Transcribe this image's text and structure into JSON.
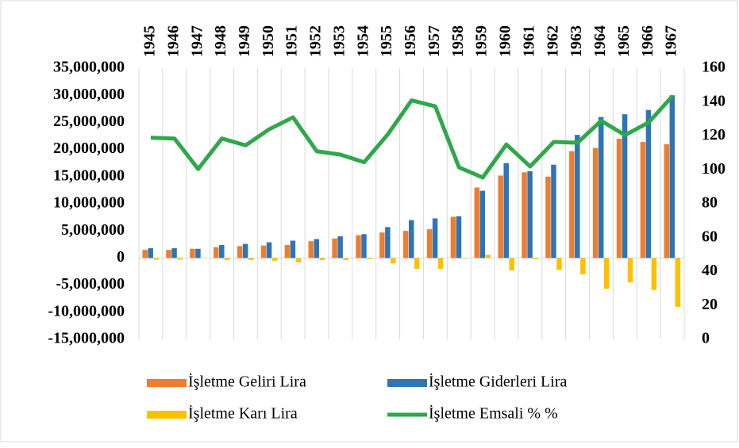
{
  "chart_data": {
    "type": "bar",
    "categories": [
      "1945",
      "1946",
      "1947",
      "1948",
      "1949",
      "1950",
      "1951",
      "1952",
      "1953",
      "1954",
      "1955",
      "1956",
      "1957",
      "1958",
      "1959",
      "1960",
      "1961",
      "1962",
      "1963",
      "1964",
      "1965",
      "1966",
      "1967"
    ],
    "series": [
      {
        "name": "İşletme Geliri Lira",
        "color": "#ED7D31",
        "type": "bar",
        "values": [
          1500000,
          1500000,
          1700000,
          2000000,
          2200000,
          2300000,
          2400000,
          3100000,
          3600000,
          4200000,
          4700000,
          5000000,
          5300000,
          7600000,
          13000000,
          15200000,
          15800000,
          15000000,
          19700000,
          20300000,
          22000000,
          21400000,
          21000000
        ]
      },
      {
        "name": "İşletme Giderleri Lira",
        "color": "#2E75B6",
        "type": "bar",
        "values": [
          1800000,
          1800000,
          1700000,
          2400000,
          2600000,
          2900000,
          3200000,
          3500000,
          4000000,
          4400000,
          5700000,
          7000000,
          7300000,
          7700000,
          12400000,
          17500000,
          16000000,
          17200000,
          22700000,
          26000000,
          26500000,
          27300000,
          30000000
        ]
      },
      {
        "name": "İşletme Karı Lira",
        "color": "#FFC000",
        "type": "bar",
        "values": [
          -300000,
          -300000,
          0,
          -400000,
          -400000,
          -500000,
          -800000,
          -400000,
          -400000,
          -200000,
          -1000000,
          -2000000,
          -2000000,
          -100000,
          600000,
          -2300000,
          -200000,
          -2200000,
          -3000000,
          -5700000,
          -4500000,
          -5900000,
          -9000000
        ]
      },
      {
        "name": "İşletme Emsali % %",
        "color": "#2EA84A",
        "type": "line",
        "axis": "y2",
        "values": [
          119,
          118.5,
          100.5,
          118.5,
          114.5,
          124,
          131,
          111,
          109,
          104.5,
          121,
          141,
          137.5,
          101.5,
          95.5,
          115,
          102,
          116.5,
          116,
          129,
          120.5,
          128,
          143.5
        ]
      }
    ],
    "ylim": [
      -15000000,
      35000000
    ],
    "yticks": [
      {
        "value": -15000000,
        "label": "-15,000,000"
      },
      {
        "value": -10000000,
        "label": "-10,000,000"
      },
      {
        "value": -5000000,
        "label": "-5,000,000"
      },
      0,
      {
        "value": 5000000,
        "label": "5,000,000"
      },
      {
        "value": 10000000,
        "label": "10,000,000"
      },
      {
        "value": 15000000,
        "label": "15,000,000"
      },
      {
        "value": 20000000,
        "label": "20,000,000"
      },
      {
        "value": 25000000,
        "label": "25,000,000"
      },
      {
        "value": 30000000,
        "label": "30,000,000"
      },
      {
        "value": 35000000,
        "label": "35,000,000"
      }
    ],
    "y2lim": [
      0,
      160
    ],
    "y2ticks": [
      0,
      20,
      40,
      60,
      80,
      100,
      120,
      140,
      160
    ],
    "legend": "bottom"
  }
}
